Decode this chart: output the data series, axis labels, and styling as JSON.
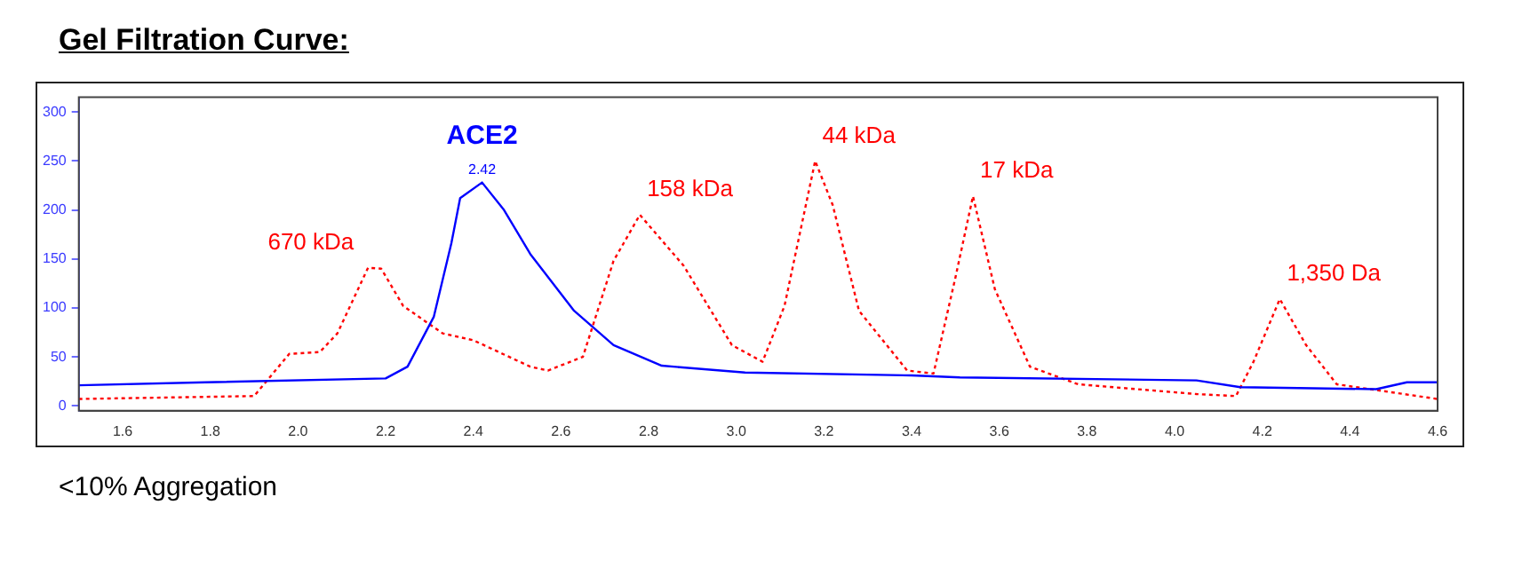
{
  "chart_data": {
    "type": "line",
    "title": "Gel Filtration Curve:",
    "xlim": [
      1.5,
      4.6
    ],
    "xticks": [
      1.6,
      1.8,
      {
        "value": 2,
        "label": "2.0"
      },
      2.2,
      2.4,
      2.6,
      2.8,
      {
        "value": 3,
        "label": "3.0"
      },
      3.2,
      3.4,
      3.6,
      3.8,
      {
        "value": 4,
        "label": "4.0"
      },
      4.2,
      4.4,
      4.6
    ],
    "ylim": [
      -5,
      315
    ],
    "yticks": [
      0,
      50,
      100,
      150,
      200,
      250,
      300
    ],
    "grid": false,
    "legend": false,
    "marker": "none",
    "series": [
      {
        "name": "ACE2",
        "color": "#0000ff",
        "line_style": "solid",
        "x": [
          1.5,
          1.79,
          2.2,
          2.25,
          2.31,
          2.35,
          2.37,
          2.42,
          2.47,
          2.53,
          2.63,
          2.72,
          2.83,
          3.02,
          3.4,
          3.51,
          4.05,
          4.15,
          4.46,
          4.53,
          4.6
        ],
        "values": [
          21,
          24,
          28,
          40,
          91,
          166,
          212,
          228,
          200,
          155,
          97,
          62,
          41,
          34,
          31,
          29,
          26,
          19,
          17,
          24,
          24
        ]
      },
      {
        "color": "#ff0000",
        "line_style": "dotted",
        "x": [
          1.5,
          1.9,
          1.98,
          2.05,
          2.09,
          2.16,
          2.19,
          2.24,
          2.33,
          2.4,
          2.53,
          2.57,
          2.65,
          2.72,
          2.78,
          2.88,
          2.99,
          3.06,
          3.11,
          3.18,
          3.22,
          3.28,
          3.39,
          3.45,
          3.5,
          3.54,
          3.59,
          3.67,
          3.78,
          4.05,
          4.14,
          4.18,
          4.24,
          4.3,
          4.37,
          4.6
        ],
        "values": [
          7,
          10,
          53,
          55,
          74,
          141,
          140,
          102,
          74,
          67,
          40,
          36,
          50,
          148,
          195,
          143,
          62,
          45,
          102,
          250,
          205,
          97,
          36,
          33,
          131,
          214,
          119,
          40,
          22,
          12,
          10,
          45,
          109,
          62,
          22,
          7
        ]
      }
    ],
    "annotations": [
      {
        "text": "2.42",
        "x": 2.42,
        "y": 228
      },
      {
        "text": "670 kDa",
        "x": 2.16,
        "y": 141
      },
      {
        "text": "158 kDa",
        "x": 2.78,
        "y": 195
      },
      {
        "text": "44 kDa",
        "x": 3.18,
        "y": 250
      },
      {
        "text": "17 kDa",
        "x": 3.54,
        "y": 214
      },
      {
        "text": "1,350 Da",
        "x": 4.24,
        "y": 109
      },
      "<10% Aggregation"
    ]
  }
}
